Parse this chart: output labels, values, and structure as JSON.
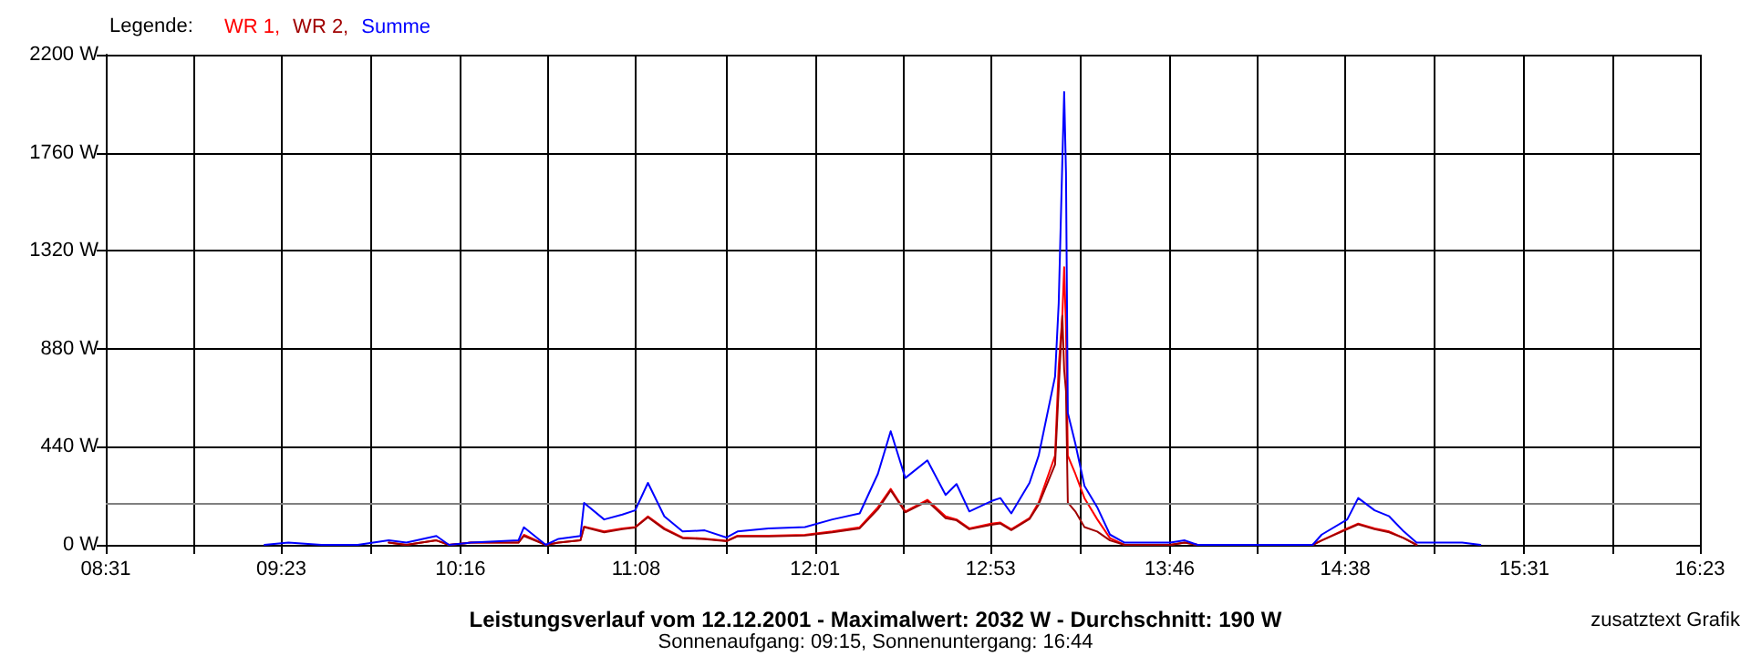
{
  "chart_data": {
    "type": "line",
    "title": "Leistungsverlauf vom 12.12.2001 - Maximalwert: 2032 W - Durchschnitt: 190 W",
    "subtitle": "Sonnenaufgang: 09:15, Sonnenuntergang: 16:44",
    "legend_title": "Legende:",
    "legend": "top left",
    "grid": true,
    "marker": "none",
    "line_style": "solid",
    "annotations": [
      "zusatztext Grafik"
    ],
    "x": [
      9.3,
      9.418,
      9.58,
      9.76,
      9.913,
      10.0,
      10.148,
      10.21,
      10.318,
      10.553,
      10.58,
      10.688,
      10.751,
      10.859,
      10.877,
      10.976,
      11.066,
      11.129,
      11.192,
      11.273,
      11.363,
      11.472,
      11.58,
      11.634,
      11.787,
      11.967,
      12.102,
      12.237,
      12.327,
      12.39,
      12.462,
      12.571,
      12.661,
      12.715,
      12.778,
      12.886,
      12.931,
      12.985,
      13.075,
      13.12,
      13.201,
      13.219,
      13.237,
      13.246,
      13.255,
      13.264,
      13.301,
      13.346,
      13.409,
      13.472,
      13.544,
      13.769,
      13.841,
      13.904,
      14.472,
      14.517,
      14.643,
      14.697,
      14.778,
      14.85,
      14.922,
      14.985,
      15.21,
      15.3
    ],
    "series": [
      {
        "name": "WR 1,",
        "color": "#ff0000",
        "values": [
          null,
          null,
          null,
          null,
          10,
          0,
          20,
          0,
          10,
          10,
          45,
          0,
          10,
          20,
          82,
          60,
          74,
          80,
          128,
          74,
          33,
          28,
          18,
          41,
          41,
          45,
          60,
          79,
          169,
          251,
          150,
          202,
          128,
          114,
          74,
          95,
          100,
          70,
          120,
          190,
          400,
          800,
          1028,
          1246,
          974,
          400,
          319,
          210,
          115,
          30,
          0,
          0,
          10,
          0,
          0,
          20,
          74,
          95,
          74,
          60,
          30,
          0,
          null,
          null
        ]
      },
      {
        "name": "WR 2,",
        "color": "#a00000",
        "values": [
          null,
          null,
          null,
          null,
          10,
          0,
          20,
          0,
          10,
          10,
          40,
          0,
          10,
          20,
          80,
          56,
          70,
          78,
          124,
          70,
          30,
          26,
          16,
          38,
          38,
          42,
          56,
          74,
          160,
          245,
          146,
          196,
          120,
          110,
          70,
          90,
          96,
          66,
          116,
          180,
          360,
          700,
          1028,
          786,
          690,
          190,
          150,
          80,
          60,
          20,
          0,
          0,
          10,
          0,
          0,
          20,
          70,
          92,
          70,
          56,
          30,
          0,
          null,
          null
        ]
      },
      {
        "name": "Summe",
        "color": "#0000ff",
        "values": [
          0,
          10,
          0,
          0,
          20,
          10,
          40,
          0,
          10,
          20,
          79,
          0,
          27,
          40,
          188,
          114,
          136,
          155,
          278,
          128,
          60,
          65,
          33,
          60,
          74,
          80,
          114,
          141,
          319,
          510,
          300,
          379,
          224,
          273,
          150,
          196,
          210,
          141,
          278,
          400,
          755,
          1083,
          1723,
          2032,
          1669,
          592,
          455,
          265,
          169,
          46,
          10,
          10,
          20,
          0,
          0,
          46,
          114,
          210,
          155,
          128,
          60,
          10,
          10,
          0
        ]
      }
    ],
    "xlim": [
      8.5167,
      16.3833
    ],
    "xticks": [
      {
        "value": 8.5167,
        "label": "08:31"
      },
      {
        "value": 8.95,
        "label": null
      },
      {
        "value": 9.3833,
        "label": "09:23"
      },
      {
        "value": 9.825,
        "label": null
      },
      {
        "value": 10.2667,
        "label": "10:16"
      },
      {
        "value": 10.7,
        "label": null
      },
      {
        "value": 11.1333,
        "label": "11:08"
      },
      {
        "value": 11.575,
        "label": null
      },
      {
        "value": 12.0167,
        "label": "12:01"
      },
      {
        "value": 12.45,
        "label": null
      },
      {
        "value": 12.8833,
        "label": "12:53"
      },
      {
        "value": 13.325,
        "label": null
      },
      {
        "value": 13.7667,
        "label": "13:46"
      },
      {
        "value": 14.2,
        "label": null
      },
      {
        "value": 14.6333,
        "label": "14:38"
      },
      {
        "value": 15.075,
        "label": null
      },
      {
        "value": 15.5167,
        "label": "15:31"
      },
      {
        "value": 15.95,
        "label": null
      },
      {
        "value": 16.3833,
        "label": "16:23"
      }
    ],
    "ylim": [
      0,
      2200
    ],
    "yticks": [
      {
        "value": 0,
        "label": "0 W"
      },
      {
        "value": 440,
        "label": "440 W"
      },
      {
        "value": 880,
        "label": "880 W"
      },
      {
        "value": 1320,
        "label": "1320 W"
      },
      {
        "value": 1760,
        "label": "1760 W"
      },
      {
        "value": 2200,
        "label": "2200 W"
      }
    ],
    "ref_lines": [
      {
        "axis": "y",
        "value": 190,
        "color": "#808080"
      }
    ]
  }
}
